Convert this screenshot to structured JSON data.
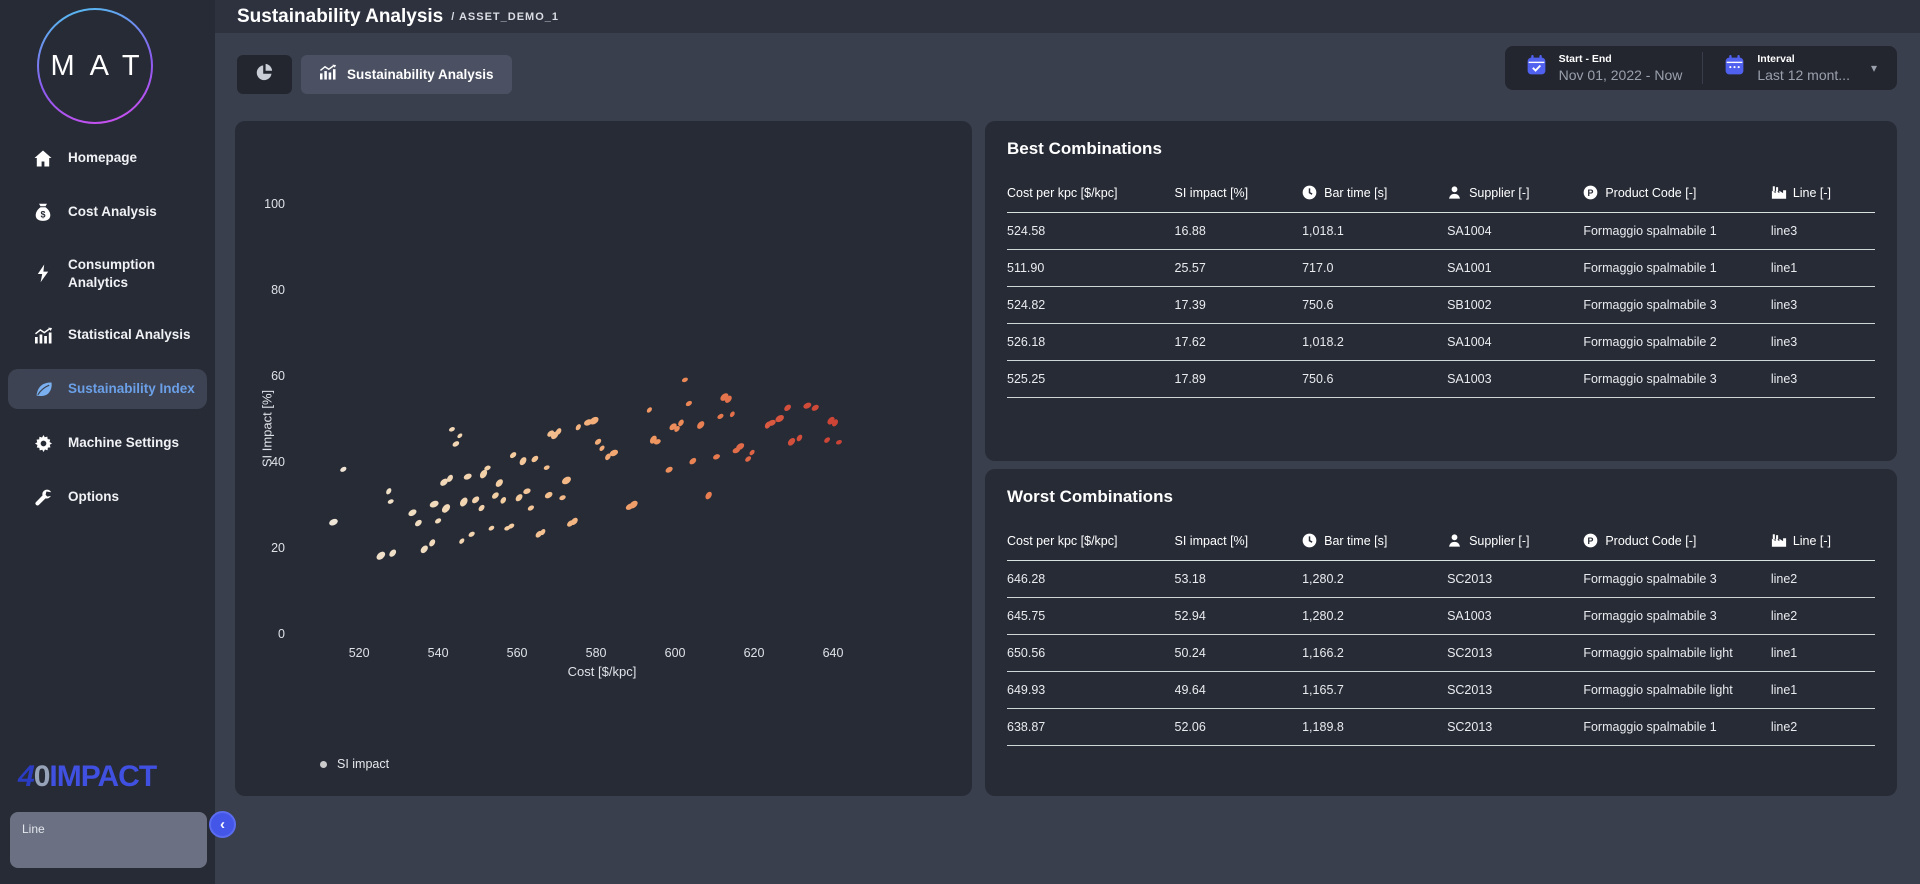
{
  "header": {
    "title": "Sustainability Analysis",
    "breadcrumb": "/ ASSET_DEMO_1"
  },
  "sidebar": {
    "logo_text": "MAT",
    "items": [
      {
        "label": "Homepage",
        "icon": "home-icon",
        "active": false
      },
      {
        "label": "Cost Analysis",
        "icon": "money-bag-icon",
        "active": false
      },
      {
        "label": "Consumption Analytics",
        "icon": "lightning-icon",
        "active": false
      },
      {
        "label": "Statistical Analysis",
        "icon": "bar-chart-icon",
        "active": false
      },
      {
        "label": "Sustainability Index",
        "icon": "leaf-icon",
        "active": true
      },
      {
        "label": "Machine Settings",
        "icon": "gear-icon",
        "active": false
      },
      {
        "label": "Options",
        "icon": "wrench-icon",
        "active": false
      }
    ],
    "brand": {
      "p1": "4",
      "p2": "0",
      "p3": "IMPACT"
    },
    "line_panel_label": "Line",
    "collapse_icon": "chevron-left"
  },
  "toolbar": {
    "tab_label": "Sustainability Analysis",
    "date_filter": {
      "label": "Start - End",
      "value": "Nov 01, 2022 - Now"
    },
    "interval_filter": {
      "label": "Interval",
      "value": "Last 12 mont..."
    }
  },
  "chart_data": {
    "type": "scatter",
    "title": "",
    "xlabel": "Cost [$/kpc]",
    "ylabel": "SI Impact [%]",
    "xlim": [
      503,
      660
    ],
    "ylim": [
      0,
      105
    ],
    "xticks": [
      520,
      540,
      560,
      580,
      600,
      620,
      640
    ],
    "yticks": [
      0,
      20,
      40,
      60,
      80,
      100
    ],
    "grid": false,
    "legend": [
      {
        "label": "SI impact",
        "marker_color": "#cbcbcb"
      }
    ],
    "legend_position": "bottom-left",
    "color_by": "x",
    "color_stops": [
      [
        505,
        "#efe8de"
      ],
      [
        535,
        "#f0ddc1"
      ],
      [
        558,
        "#f4cda1"
      ],
      [
        578,
        "#f3b07c"
      ],
      [
        596,
        "#ef945f"
      ],
      [
        612,
        "#e5764c"
      ],
      [
        628,
        "#d5503c"
      ],
      [
        652,
        "#c23830"
      ]
    ],
    "points": [
      [
        513.5,
        26,
        3.5
      ],
      [
        516,
        38.3,
        2.6
      ],
      [
        525.5,
        18.2,
        3.8
      ],
      [
        528.5,
        18.8,
        3.2
      ],
      [
        527.5,
        33.2,
        2.6
      ],
      [
        528,
        30.8,
        2.4
      ],
      [
        533.5,
        28.2,
        3.4
      ],
      [
        535,
        25.8,
        3
      ],
      [
        536.5,
        19.7,
        3.4
      ],
      [
        538.5,
        21.2,
        3
      ],
      [
        539,
        30.2,
        3.6
      ],
      [
        540,
        26.3,
        2.6
      ],
      [
        541.5,
        35.3,
        3.4
      ],
      [
        542,
        29.2,
        3.8
      ],
      [
        543,
        36.2,
        3
      ],
      [
        543.5,
        47.6,
        2.4
      ],
      [
        544.5,
        44.2,
        2.8
      ],
      [
        545.5,
        46.1,
        2.2
      ],
      [
        546,
        21.6,
        2.4
      ],
      [
        546.5,
        30.7,
        3.8
      ],
      [
        547.5,
        36.6,
        3.2
      ],
      [
        548.5,
        23.2,
        2.6
      ],
      [
        549.5,
        31.2,
        3.2
      ],
      [
        551,
        29.3,
        2.8
      ],
      [
        551.5,
        37.2,
        3.6
      ],
      [
        552.5,
        38.6,
        2.6
      ],
      [
        553.5,
        24.6,
        2.4
      ],
      [
        554.5,
        32.2,
        3
      ],
      [
        555.5,
        35.1,
        3.4
      ],
      [
        556.5,
        31.1,
        2.8
      ],
      [
        557.5,
        24.6,
        2.4
      ],
      [
        558.5,
        25.1,
        2.6
      ],
      [
        559,
        41.6,
        2.8
      ],
      [
        560.5,
        31.7,
        3.2
      ],
      [
        561.5,
        40.2,
        3.4
      ],
      [
        562.5,
        33.2,
        3
      ],
      [
        563.5,
        29.3,
        2.6
      ],
      [
        564.5,
        40.7,
        3
      ],
      [
        565.5,
        23.2,
        3
      ],
      [
        566.5,
        23.7,
        2.6
      ],
      [
        567.5,
        38.7,
        2.4
      ],
      [
        568,
        32.3,
        3.2
      ],
      [
        568.5,
        46.6,
        3
      ],
      [
        569.5,
        46.2,
        3.4
      ],
      [
        570.5,
        47.1,
        2.8
      ],
      [
        571.5,
        31.7,
        2.6
      ],
      [
        572.5,
        35.7,
        3.8
      ],
      [
        573.5,
        25.7,
        3
      ],
      [
        574.5,
        26.2,
        3.2
      ],
      [
        575.5,
        48.1,
        2.6
      ],
      [
        578,
        49.2,
        3.4
      ],
      [
        579.5,
        49.6,
        3.8
      ],
      [
        580.5,
        44.7,
        2.8
      ],
      [
        581.5,
        43.2,
        2.4
      ],
      [
        583,
        41.2,
        2.8
      ],
      [
        584.5,
        42.1,
        3.4
      ],
      [
        588.5,
        29.6,
        3.2
      ],
      [
        589.5,
        30.1,
        3.6
      ],
      [
        593.5,
        52.1,
        2.4
      ],
      [
        594.5,
        45.2,
        3.4
      ],
      [
        595.5,
        44.7,
        2.8
      ],
      [
        598.5,
        38.2,
        3
      ],
      [
        599.5,
        48.2,
        3.2
      ],
      [
        600.5,
        47.7,
        2.6
      ],
      [
        601.5,
        49.1,
        2.8
      ],
      [
        602.5,
        59.1,
        2.4
      ],
      [
        603.5,
        53.6,
        2.6
      ],
      [
        604.5,
        40.2,
        3
      ],
      [
        606.5,
        48.6,
        3.4
      ],
      [
        608.5,
        32.2,
        3.2
      ],
      [
        610.5,
        41.2,
        2.8
      ],
      [
        611.5,
        50.6,
        2.6
      ],
      [
        612.5,
        55.1,
        3.6
      ],
      [
        613.5,
        54.6,
        3.2
      ],
      [
        614.5,
        51.1,
        2.4
      ],
      [
        615.5,
        42.7,
        3
      ],
      [
        616.5,
        43.6,
        3.4
      ],
      [
        618.5,
        40.7,
        2.6
      ],
      [
        619.5,
        42.2,
        2.4
      ],
      [
        623.5,
        48.6,
        3
      ],
      [
        624.5,
        49.1,
        3.2
      ],
      [
        626.5,
        50.1,
        3.6
      ],
      [
        628.5,
        52.6,
        3
      ],
      [
        629.5,
        44.7,
        3.4
      ],
      [
        631.5,
        45.6,
        2.8
      ],
      [
        633.5,
        53.1,
        3.2
      ],
      [
        635.5,
        52.6,
        3
      ],
      [
        638.5,
        45.1,
        2.6
      ],
      [
        639.5,
        49.6,
        3.4
      ],
      [
        640.5,
        49.1,
        3
      ],
      [
        641.5,
        44.6,
        2.4
      ]
    ]
  },
  "best": {
    "title": "Best Combinations",
    "columns": [
      {
        "label": "Cost per kpc [$/kpc]",
        "icon": null
      },
      {
        "label": "SI impact [%]",
        "icon": null
      },
      {
        "label": "Bar time [s]",
        "icon": "clock-icon"
      },
      {
        "label": "Supplier [-]",
        "icon": "supplier-icon"
      },
      {
        "label": "Product Code [-]",
        "icon": "product-code-icon"
      },
      {
        "label": "Line [-]",
        "icon": "factory-icon"
      }
    ],
    "rows": [
      [
        "524.58",
        "16.88",
        "1,018.1",
        "SA1004",
        "Formaggio spalmabile 1",
        "line3"
      ],
      [
        "511.90",
        "25.57",
        "717.0",
        "SA1001",
        "Formaggio spalmabile 1",
        "line1"
      ],
      [
        "524.82",
        "17.39",
        "750.6",
        "SB1002",
        "Formaggio spalmabile 3",
        "line3"
      ],
      [
        "526.18",
        "17.62",
        "1,018.2",
        "SA1004",
        "Formaggio spalmabile 2",
        "line3"
      ],
      [
        "525.25",
        "17.89",
        "750.6",
        "SA1003",
        "Formaggio spalmabile 3",
        "line3"
      ]
    ]
  },
  "worst": {
    "title": "Worst Combinations",
    "columns": [
      {
        "label": "Cost per kpc [$/kpc]",
        "icon": null
      },
      {
        "label": "SI impact [%]",
        "icon": null
      },
      {
        "label": "Bar time [s]",
        "icon": "clock-icon"
      },
      {
        "label": "Supplier [-]",
        "icon": "supplier-icon"
      },
      {
        "label": "Product Code [-]",
        "icon": "product-code-icon"
      },
      {
        "label": "Line [-]",
        "icon": "factory-icon"
      }
    ],
    "rows": [
      [
        "646.28",
        "53.18",
        "1,280.2",
        "SC2013",
        "Formaggio spalmabile 3",
        "line2"
      ],
      [
        "645.75",
        "52.94",
        "1,280.2",
        "SA1003",
        "Formaggio spalmabile 3",
        "line2"
      ],
      [
        "650.56",
        "50.24",
        "1,166.2",
        "SC2013",
        "Formaggio spalmabile light",
        "line1"
      ],
      [
        "649.93",
        "49.64",
        "1,165.7",
        "SC2013",
        "Formaggio spalmabile light",
        "line1"
      ],
      [
        "638.87",
        "52.06",
        "1,189.8",
        "SC2013",
        "Formaggio spalmabile 1",
        "line2"
      ]
    ]
  },
  "colors": {
    "accent_blue": "#4356e8",
    "active_link_blue": "#6ba0e8",
    "leaf_blue": "#7ab0f0",
    "card_bg": "#272b36",
    "main_bg": "#3a3f4e",
    "topbar_bg": "#2e323e",
    "calendar_icon_blue": "#5161ef"
  }
}
